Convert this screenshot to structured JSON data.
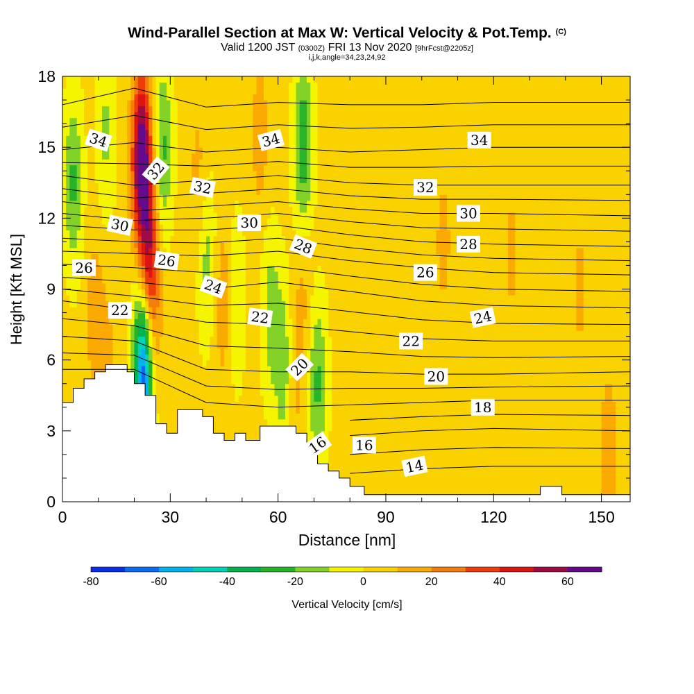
{
  "header": {
    "title": "Wind-Parallel Section at Max W: Vertical Velocity & Pot.Temp.",
    "title_mark": "(C)",
    "valid_main": "Valid 1200 JST",
    "valid_utc": "(0300Z)",
    "valid_date": "FRI 13 Nov 2020",
    "valid_fcst": "[9hrFcst@2205z]",
    "index_line": "i,j,k,angle=34,23,24,92"
  },
  "chart_data": {
    "type": "heatmap",
    "title": "Wind-Parallel Section at Max W: Vertical Velocity & Pot.Temp.",
    "xlabel": "Distance [nm]",
    "ylabel": "Height [Kft MSL]",
    "xlim": [
      0,
      158
    ],
    "ylim": [
      0,
      18
    ],
    "x_ticks": [
      0,
      30,
      60,
      90,
      120,
      150
    ],
    "y_ticks": [
      0,
      3,
      6,
      9,
      12,
      15,
      18
    ],
    "colorbar": {
      "label": "Vertical Velocity [cm/s]",
      "ticks": [
        -80,
        -60,
        -40,
        -20,
        0,
        20,
        40,
        60
      ],
      "bins": [
        -80,
        -70,
        -60,
        -50,
        -40,
        -30,
        -20,
        -10,
        0,
        10,
        20,
        30,
        40,
        50,
        60,
        70
      ],
      "colors": [
        "#0a2ee8",
        "#0a6cf0",
        "#00b4f0",
        "#00d4b4",
        "#00b450",
        "#28b428",
        "#82d228",
        "#f5f500",
        "#fad200",
        "#faaa00",
        "#f57d0a",
        "#f03c0a",
        "#dc1414",
        "#a00a46",
        "#640a8c"
      ]
    },
    "velocity_field": {
      "background_cm_s": 3,
      "updrafts": [
        {
          "x": 22,
          "z": 14.5,
          "w": 68
        },
        {
          "x": 24,
          "z": 10.5,
          "w": 38
        },
        {
          "x": 25,
          "z": 7.5,
          "w": 18
        },
        {
          "x": 9,
          "z": 8.0,
          "w": 12
        },
        {
          "x": 38,
          "z": 13.5,
          "w": 12
        },
        {
          "x": 45,
          "z": 8.5,
          "w": 16
        },
        {
          "x": 55,
          "z": 15.5,
          "w": 12
        },
        {
          "x": 64,
          "z": 5.0,
          "w": 15
        },
        {
          "x": 67,
          "z": 9.0,
          "w": 10
        },
        {
          "x": 12,
          "z": 5.5,
          "w": 12
        },
        {
          "x": 106,
          "z": 11.0,
          "w": 10
        },
        {
          "x": 125,
          "z": 10.5,
          "w": 9
        },
        {
          "x": 144,
          "z": 9.0,
          "w": 9
        },
        {
          "x": 152,
          "z": 2.2,
          "w": 14
        }
      ],
      "downdrafts": [
        {
          "x": 3,
          "z": 13.5,
          "w": -25
        },
        {
          "x": 28,
          "z": 15.0,
          "w": -25
        },
        {
          "x": 40,
          "z": 10.5,
          "w": -18
        },
        {
          "x": 48,
          "z": 8.5,
          "w": -15
        },
        {
          "x": 58,
          "z": 8.0,
          "w": -18
        },
        {
          "x": 62,
          "z": 5.5,
          "w": -25
        },
        {
          "x": 67,
          "z": 15.0,
          "w": -32
        },
        {
          "x": 71,
          "z": 5.0,
          "w": -25
        },
        {
          "x": 12,
          "z": 15.5,
          "w": -15
        },
        {
          "x": 22,
          "z": 6.0,
          "w": -30
        },
        {
          "x": 23,
          "z": 5.2,
          "w": -48
        }
      ]
    },
    "potential_temperature": {
      "units": "C",
      "contour_interval": 1,
      "labeled_contours": [
        34,
        32,
        30,
        28,
        26,
        24,
        22,
        20,
        18,
        16,
        14
      ],
      "profiles": [
        {
          "x": 0,
          "levels": [
            [
              18,
              5.6
            ],
            [
              20,
              7.0
            ],
            [
              22,
              8.5
            ],
            [
              24,
              9.5
            ],
            [
              26,
              10.6
            ],
            [
              28,
              11.7
            ],
            [
              30,
              12.7
            ],
            [
              32,
              13.8
            ],
            [
              34,
              14.9
            ],
            [
              36,
              16.8
            ]
          ]
        },
        {
          "x": 20,
          "levels": [
            [
              18,
              5.6
            ],
            [
              20,
              6.8
            ],
            [
              22,
              8.1
            ],
            [
              24,
              9.3
            ],
            [
              26,
              10.5
            ],
            [
              28,
              11.5
            ],
            [
              30,
              12.3
            ],
            [
              32,
              13.4
            ],
            [
              34,
              15.2
            ],
            [
              36,
              17.5
            ]
          ]
        },
        {
          "x": 40,
          "levels": [
            [
              18,
              4.2
            ],
            [
              20,
              5.6
            ],
            [
              22,
              7.6
            ],
            [
              24,
              9.0
            ],
            [
              26,
              10.4
            ],
            [
              28,
              11.5
            ],
            [
              30,
              12.5
            ],
            [
              32,
              13.6
            ],
            [
              34,
              14.8
            ],
            [
              36,
              16.7
            ]
          ]
        },
        {
          "x": 60,
          "levels": [
            [
              18,
              4.0
            ],
            [
              20,
              5.5
            ],
            [
              22,
              7.5
            ],
            [
              24,
              9.3
            ],
            [
              26,
              10.6
            ],
            [
              28,
              11.7
            ],
            [
              30,
              12.7
            ],
            [
              32,
              13.8
            ],
            [
              34,
              15.0
            ],
            [
              36,
              16.9
            ]
          ]
        },
        {
          "x": 80,
          "levels": [
            [
              14,
              1.2
            ],
            [
              16,
              2.8
            ],
            [
              18,
              4.1
            ],
            [
              20,
              5.5
            ],
            [
              22,
              7.2
            ],
            [
              24,
              8.9
            ],
            [
              26,
              10.2
            ],
            [
              28,
              11.3
            ],
            [
              30,
              12.4
            ],
            [
              32,
              13.5
            ],
            [
              34,
              14.8
            ],
            [
              36,
              16.8
            ]
          ]
        },
        {
          "x": 100,
          "levels": [
            [
              14,
              1.4
            ],
            [
              16,
              3.0
            ],
            [
              18,
              4.2
            ],
            [
              20,
              5.4
            ],
            [
              22,
              6.9
            ],
            [
              24,
              8.5
            ],
            [
              26,
              9.9
            ],
            [
              28,
              11.0
            ],
            [
              30,
              12.2
            ],
            [
              32,
              13.4
            ],
            [
              34,
              14.9
            ],
            [
              36,
              16.8
            ]
          ]
        },
        {
          "x": 120,
          "levels": [
            [
              14,
              1.5
            ],
            [
              16,
              3.1
            ],
            [
              18,
              4.3
            ],
            [
              20,
              5.4
            ],
            [
              22,
              6.8
            ],
            [
              24,
              8.3
            ],
            [
              26,
              9.7
            ],
            [
              28,
              10.9
            ],
            [
              30,
              12.2
            ],
            [
              32,
              13.4
            ],
            [
              34,
              15.0
            ],
            [
              36,
              16.9
            ]
          ]
        },
        {
          "x": 158,
          "levels": [
            [
              14,
              1.5
            ],
            [
              16,
              3.0
            ],
            [
              18,
              4.3
            ],
            [
              20,
              5.5
            ],
            [
              22,
              6.8
            ],
            [
              24,
              8.2
            ],
            [
              26,
              9.6
            ],
            [
              28,
              10.8
            ],
            [
              30,
              12.1
            ],
            [
              32,
              13.4
            ],
            [
              34,
              15.0
            ],
            [
              36,
              16.9
            ]
          ]
        }
      ]
    },
    "contour_labels": [
      {
        "text": "34",
        "x": 10,
        "z": 15.3,
        "angle": 18
      },
      {
        "text": "32",
        "x": 26,
        "z": 14.0,
        "angle": -50
      },
      {
        "text": "30",
        "x": 16,
        "z": 11.7,
        "angle": 12
      },
      {
        "text": "26",
        "x": 6,
        "z": 9.9,
        "angle": 0
      },
      {
        "text": "22",
        "x": 16,
        "z": 8.1,
        "angle": 0
      },
      {
        "text": "34",
        "x": 58,
        "z": 15.3,
        "angle": -15
      },
      {
        "text": "32",
        "x": 39,
        "z": 13.3,
        "angle": 12
      },
      {
        "text": "30",
        "x": 52,
        "z": 11.8,
        "angle": 0
      },
      {
        "text": "26",
        "x": 29,
        "z": 10.2,
        "angle": 8
      },
      {
        "text": "28",
        "x": 67,
        "z": 10.8,
        "angle": 22
      },
      {
        "text": "24",
        "x": 42,
        "z": 9.1,
        "angle": 20
      },
      {
        "text": "22",
        "x": 55,
        "z": 7.8,
        "angle": 8
      },
      {
        "text": "20",
        "x": 66,
        "z": 5.7,
        "angle": -45
      },
      {
        "text": "16",
        "x": 71,
        "z": 2.4,
        "angle": -35
      },
      {
        "text": "34",
        "x": 116,
        "z": 15.3,
        "angle": 0
      },
      {
        "text": "32",
        "x": 101,
        "z": 13.3,
        "angle": 0
      },
      {
        "text": "30",
        "x": 113,
        "z": 12.2,
        "angle": 0
      },
      {
        "text": "28",
        "x": 113,
        "z": 10.9,
        "angle": 0
      },
      {
        "text": "26",
        "x": 101,
        "z": 9.7,
        "angle": 0
      },
      {
        "text": "24",
        "x": 117,
        "z": 7.8,
        "angle": -12
      },
      {
        "text": "22",
        "x": 97,
        "z": 6.8,
        "angle": 0
      },
      {
        "text": "20",
        "x": 104,
        "z": 5.3,
        "angle": 0
      },
      {
        "text": "18",
        "x": 117,
        "z": 4.0,
        "angle": 0
      },
      {
        "text": "16",
        "x": 84,
        "z": 2.4,
        "angle": 0
      },
      {
        "text": "14",
        "x": 98,
        "z": 1.5,
        "angle": -12
      }
    ],
    "terrain_kft": [
      [
        0,
        4.2
      ],
      [
        3,
        4.2
      ],
      [
        3,
        4.8
      ],
      [
        6,
        4.8
      ],
      [
        6,
        5.2
      ],
      [
        9,
        5.2
      ],
      [
        9,
        5.5
      ],
      [
        12,
        5.5
      ],
      [
        12,
        5.8
      ],
      [
        18,
        5.8
      ],
      [
        18,
        5.5
      ],
      [
        20,
        5.5
      ],
      [
        20,
        5.0
      ],
      [
        23,
        5.0
      ],
      [
        23,
        4.5
      ],
      [
        26,
        4.5
      ],
      [
        26,
        3.3
      ],
      [
        29,
        3.3
      ],
      [
        29,
        2.9
      ],
      [
        32,
        2.9
      ],
      [
        32,
        3.9
      ],
      [
        39,
        3.9
      ],
      [
        39,
        3.6
      ],
      [
        42,
        3.6
      ],
      [
        42,
        2.9
      ],
      [
        45,
        2.9
      ],
      [
        45,
        2.6
      ],
      [
        48,
        2.6
      ],
      [
        48,
        2.9
      ],
      [
        51,
        2.9
      ],
      [
        51,
        2.6
      ],
      [
        55,
        2.6
      ],
      [
        55,
        3.2
      ],
      [
        65,
        3.2
      ],
      [
        65,
        2.9
      ],
      [
        68,
        2.9
      ],
      [
        68,
        2.3
      ],
      [
        71,
        2.3
      ],
      [
        71,
        1.6
      ],
      [
        74,
        1.6
      ],
      [
        74,
        1.3
      ],
      [
        77,
        1.3
      ],
      [
        77,
        1.0
      ],
      [
        80,
        1.0
      ],
      [
        80,
        0.65
      ],
      [
        84,
        0.65
      ],
      [
        84,
        0.3
      ],
      [
        133,
        0.3
      ],
      [
        133,
        0.65
      ],
      [
        139,
        0.65
      ],
      [
        139,
        0.3
      ],
      [
        158,
        0.3
      ]
    ]
  }
}
